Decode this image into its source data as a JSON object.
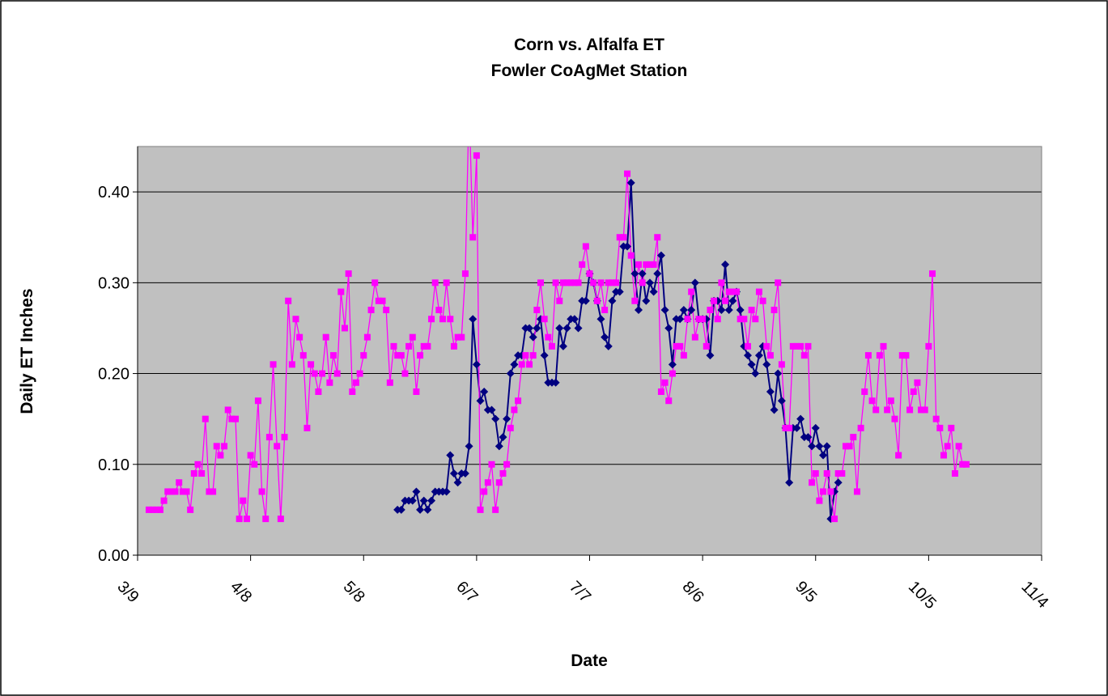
{
  "chart_data": {
    "type": "line",
    "title": "Corn vs. Alfalfa ET",
    "subtitle": "Fowler CoAgMet Station",
    "x_label": "Date",
    "y_label": "Daily ET Inches",
    "xlim": [
      "3/9",
      "11/4"
    ],
    "xticks": [
      "3/9",
      "4/8",
      "5/8",
      "6/7",
      "7/7",
      "8/6",
      "9/5",
      "10/5",
      "11/4"
    ],
    "ylim": [
      0,
      0.45
    ],
    "yticks": [
      {
        "value": 0,
        "label": "0.00"
      },
      {
        "value": 0.1,
        "label": "0.10"
      },
      {
        "value": 0.2,
        "label": "0.20"
      },
      {
        "value": 0.3,
        "label": "0.30"
      },
      {
        "value": 0.4,
        "label": "0.40"
      }
    ],
    "grid": true,
    "x": [
      "3/12",
      "3/13",
      "3/14",
      "3/15",
      "3/16",
      "3/17",
      "3/18",
      "3/19",
      "3/20",
      "3/21",
      "3/22",
      "3/23",
      "3/24",
      "3/25",
      "3/26",
      "3/27",
      "3/28",
      "3/29",
      "3/30",
      "3/31",
      "4/1",
      "4/2",
      "4/3",
      "4/4",
      "4/5",
      "4/6",
      "4/7",
      "4/8",
      "4/9",
      "4/10",
      "4/11",
      "4/12",
      "4/13",
      "4/14",
      "4/15",
      "4/16",
      "4/17",
      "4/18",
      "4/19",
      "4/20",
      "4/21",
      "4/22",
      "4/23",
      "4/24",
      "4/25",
      "4/26",
      "4/27",
      "4/28",
      "4/29",
      "4/30",
      "5/1",
      "5/2",
      "5/3",
      "5/4",
      "5/5",
      "5/6",
      "5/7",
      "5/8",
      "5/9",
      "5/10",
      "5/11",
      "5/12",
      "5/13",
      "5/14",
      "5/15",
      "5/16",
      "5/17",
      "5/18",
      "5/19",
      "5/20",
      "5/21",
      "5/22",
      "5/23",
      "5/24",
      "5/25",
      "5/26",
      "5/27",
      "5/28",
      "5/29",
      "5/30",
      "5/31",
      "6/1",
      "6/2",
      "6/3",
      "6/4",
      "6/5",
      "6/6",
      "6/7",
      "6/8",
      "6/9",
      "6/10",
      "6/11",
      "6/12",
      "6/13",
      "6/14",
      "6/15",
      "6/16",
      "6/17",
      "6/18",
      "6/19",
      "6/20",
      "6/21",
      "6/22",
      "6/23",
      "6/24",
      "6/25",
      "6/26",
      "6/27",
      "6/28",
      "6/29",
      "6/30",
      "7/1",
      "7/2",
      "7/3",
      "7/4",
      "7/5",
      "7/6",
      "7/7",
      "7/8",
      "7/9",
      "7/10",
      "7/11",
      "7/12",
      "7/13",
      "7/14",
      "7/15",
      "7/16",
      "7/17",
      "7/18",
      "7/19",
      "7/20",
      "7/21",
      "7/22",
      "7/23",
      "7/24",
      "7/25",
      "7/26",
      "7/27",
      "7/28",
      "7/29",
      "7/30",
      "7/31",
      "8/1",
      "8/2",
      "8/3",
      "8/4",
      "8/5",
      "8/6",
      "8/7",
      "8/8",
      "8/9",
      "8/10",
      "8/11",
      "8/12",
      "8/13",
      "8/14",
      "8/15",
      "8/16",
      "8/17",
      "8/18",
      "8/19",
      "8/20",
      "8/21",
      "8/22",
      "8/23",
      "8/24",
      "8/25",
      "8/26",
      "8/27",
      "8/28",
      "8/29",
      "8/30",
      "8/31",
      "9/1",
      "9/2",
      "9/3",
      "9/4",
      "9/5",
      "9/6",
      "9/7",
      "9/8",
      "9/9",
      "9/10",
      "9/11",
      "9/12",
      "9/13",
      "9/14",
      "9/15",
      "9/16",
      "9/17",
      "9/18",
      "9/19",
      "9/20",
      "9/21",
      "9/22",
      "9/23",
      "9/24",
      "9/25",
      "9/26",
      "9/27",
      "9/28",
      "9/29",
      "9/30",
      "10/1",
      "10/2",
      "10/3",
      "10/4",
      "10/5",
      "10/6",
      "10/7",
      "10/8",
      "10/9",
      "10/10",
      "10/11",
      "10/12",
      "10/13",
      "10/14",
      "10/15"
    ],
    "series": [
      {
        "color": "#000080",
        "marker": "diamond",
        "values": [
          null,
          null,
          null,
          null,
          null,
          null,
          null,
          null,
          null,
          null,
          null,
          null,
          null,
          null,
          null,
          null,
          null,
          null,
          null,
          null,
          null,
          null,
          null,
          null,
          null,
          null,
          null,
          null,
          null,
          null,
          null,
          null,
          null,
          null,
          null,
          null,
          null,
          null,
          null,
          null,
          null,
          null,
          null,
          null,
          null,
          null,
          null,
          null,
          null,
          null,
          null,
          null,
          null,
          null,
          null,
          null,
          null,
          null,
          null,
          null,
          null,
          null,
          null,
          null,
          null,
          null,
          0.05,
          0.05,
          0.06,
          0.06,
          0.06,
          0.07,
          0.05,
          0.06,
          0.05,
          0.06,
          0.07,
          0.07,
          0.07,
          0.07,
          0.11,
          0.09,
          0.08,
          0.09,
          0.09,
          0.12,
          0.26,
          0.21,
          0.17,
          0.18,
          0.16,
          0.16,
          0.15,
          0.12,
          0.13,
          0.15,
          0.2,
          0.21,
          0.22,
          0.22,
          0.25,
          0.25,
          0.24,
          0.25,
          0.26,
          0.22,
          0.19,
          0.19,
          0.19,
          0.25,
          0.23,
          0.25,
          0.26,
          0.26,
          0.25,
          0.28,
          0.28,
          0.31,
          0.3,
          0.28,
          0.26,
          0.24,
          0.23,
          0.28,
          0.29,
          0.29,
          0.34,
          0.34,
          0.41,
          0.31,
          0.27,
          0.31,
          0.28,
          0.3,
          0.29,
          0.31,
          0.33,
          0.27,
          0.25,
          0.21,
          0.26,
          0.26,
          0.27,
          0.26,
          0.27,
          0.3,
          0.26,
          0.26,
          0.26,
          0.22,
          0.28,
          0.28,
          0.27,
          0.32,
          0.27,
          0.28,
          0.29,
          0.27,
          0.23,
          0.22,
          0.21,
          0.2,
          0.22,
          0.23,
          0.21,
          0.18,
          0.16,
          0.2,
          0.17,
          0.14,
          0.08,
          0.14,
          0.14,
          0.15,
          0.13,
          0.13,
          0.12,
          0.14,
          0.12,
          0.11,
          0.12,
          0.04,
          0.07,
          0.08,
          null,
          null,
          null,
          null,
          null,
          null,
          null,
          null,
          null,
          null,
          null,
          null,
          null,
          null,
          null,
          null,
          null,
          null,
          null,
          null,
          null,
          null,
          null,
          null,
          null,
          null,
          null,
          null,
          null,
          null,
          null,
          null,
          null,
          null
        ]
      },
      {
        "color": "#ff00ff",
        "marker": "square",
        "values": [
          0.05,
          0.05,
          0.05,
          0.05,
          0.06,
          0.07,
          0.07,
          0.07,
          0.08,
          0.07,
          0.07,
          0.05,
          0.09,
          0.1,
          0.09,
          0.15,
          0.07,
          0.07,
          0.12,
          0.11,
          0.12,
          0.16,
          0.15,
          0.15,
          0.04,
          0.06,
          0.04,
          0.11,
          0.1,
          0.17,
          0.07,
          0.04,
          0.13,
          0.21,
          0.12,
          0.04,
          0.13,
          0.28,
          0.21,
          0.26,
          0.24,
          0.22,
          0.14,
          0.21,
          0.2,
          0.18,
          0.2,
          0.24,
          0.19,
          0.22,
          0.2,
          0.29,
          0.25,
          0.31,
          0.18,
          0.19,
          0.2,
          0.22,
          0.24,
          0.27,
          0.3,
          0.28,
          0.28,
          0.27,
          0.19,
          0.23,
          0.22,
          0.22,
          0.2,
          0.23,
          0.24,
          0.18,
          0.22,
          0.23,
          0.23,
          0.26,
          0.3,
          0.27,
          0.26,
          0.3,
          0.26,
          0.23,
          0.24,
          0.24,
          0.31,
          0.5,
          0.35,
          0.44,
          0.05,
          0.07,
          0.08,
          0.1,
          0.05,
          0.08,
          0.09,
          0.1,
          0.14,
          0.16,
          0.17,
          0.21,
          0.22,
          0.21,
          0.22,
          0.27,
          0.3,
          0.26,
          0.24,
          0.23,
          0.3,
          0.28,
          0.3,
          0.3,
          0.3,
          0.3,
          0.3,
          0.32,
          0.34,
          0.31,
          0.3,
          0.28,
          0.3,
          0.27,
          0.3,
          0.3,
          0.3,
          0.35,
          0.35,
          0.42,
          0.33,
          0.28,
          0.32,
          0.3,
          0.32,
          0.32,
          0.32,
          0.35,
          0.18,
          0.19,
          0.17,
          0.2,
          0.23,
          0.23,
          0.22,
          0.26,
          0.29,
          0.24,
          0.26,
          0.26,
          0.23,
          0.27,
          0.28,
          0.26,
          0.3,
          0.28,
          0.29,
          0.29,
          0.29,
          0.26,
          0.26,
          0.23,
          0.27,
          0.26,
          0.29,
          0.28,
          0.23,
          0.22,
          0.27,
          0.3,
          0.21,
          0.14,
          0.14,
          0.23,
          0.23,
          0.23,
          0.22,
          0.23,
          0.08,
          0.09,
          0.06,
          0.07,
          0.09,
          0.07,
          0.04,
          0.09,
          0.09,
          0.12,
          0.12,
          0.13,
          0.07,
          0.14,
          0.18,
          0.22,
          0.17,
          0.16,
          0.22,
          0.23,
          0.16,
          0.17,
          0.15,
          0.11,
          0.22,
          0.22,
          0.16,
          0.18,
          0.19,
          0.16,
          0.16,
          0.23,
          0.31,
          0.15,
          0.14,
          0.11,
          0.12,
          0.14,
          0.09,
          0.12,
          0.1,
          0.1
        ]
      }
    ]
  }
}
